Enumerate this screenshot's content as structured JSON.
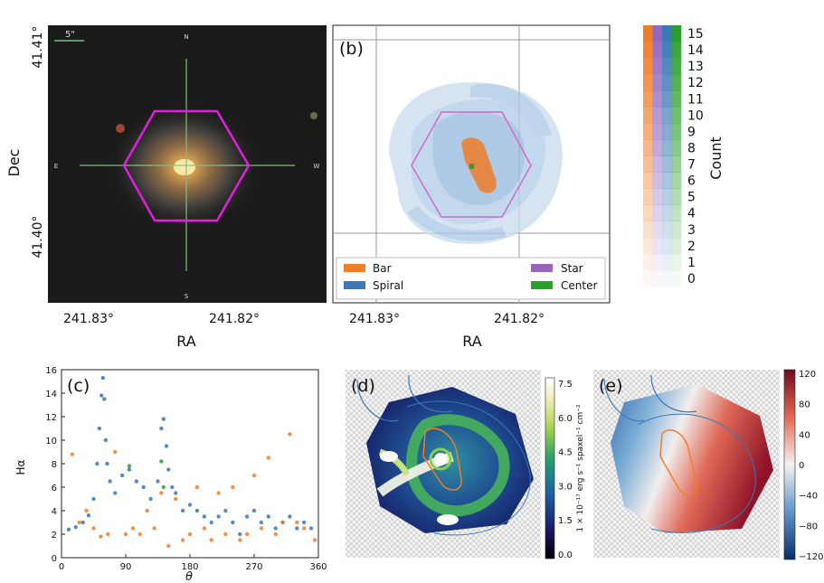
{
  "colors": {
    "bar": "#f07d28",
    "spiral": "#3b78b5",
    "star": "#9467bd",
    "center": "#2ca02c",
    "hex": "#e01fe0",
    "cross": "#7fbf7f"
  },
  "panel_a": {
    "ylabel": "Dec",
    "yticks": [
      "41.41°",
      "41.40°"
    ],
    "xticks": [
      "241.83°",
      "241.82°"
    ],
    "xlabel": "RA",
    "scale": "5\"",
    "compass": {
      "n": "N",
      "s": "S",
      "e": "E",
      "w": "W"
    }
  },
  "panel_b": {
    "letter": "(b)",
    "xticks": [
      "241.83°",
      "241.82°"
    ],
    "xlabel": "RA",
    "legend": [
      "Bar",
      "Spiral",
      "Star",
      "Center"
    ]
  },
  "colorbar_count": {
    "label": "Count",
    "ticks": [
      "15",
      "14",
      "13",
      "12",
      "11",
      "10",
      "9",
      "8",
      "7",
      "6",
      "5",
      "4",
      "3",
      "2",
      "1",
      "0"
    ]
  },
  "chart_data": {
    "type": "scatter",
    "letter": "(c)",
    "xlabel": "θ",
    "ylabel": "Hα",
    "xlim": [
      0,
      360
    ],
    "ylim": [
      0,
      16
    ],
    "xticks": [
      "0",
      "90",
      "180",
      "270",
      "360"
    ],
    "yticks": [
      "0",
      "2",
      "4",
      "6",
      "8",
      "10",
      "12",
      "14",
      "16"
    ],
    "series": [
      {
        "color_key": "spiral",
        "x": [
          10,
          20,
          30,
          38,
          45,
          50,
          53,
          56,
          58,
          60,
          62,
          64,
          68,
          75,
          85,
          95,
          105,
          115,
          125,
          135,
          140,
          143,
          147,
          150,
          155,
          160,
          170,
          180,
          190,
          200,
          210,
          220,
          230,
          240,
          250,
          260,
          270,
          280,
          290,
          300,
          310,
          320,
          330,
          340,
          350
        ],
        "y": [
          2.4,
          2.6,
          3.0,
          3.6,
          5.0,
          8.0,
          11.0,
          13.8,
          15.3,
          13.5,
          10.0,
          8.0,
          6.5,
          5.5,
          7.0,
          7.5,
          6.5,
          6.0,
          5.0,
          6.5,
          11.0,
          11.8,
          9.5,
          7.5,
          6.0,
          5.5,
          4.0,
          4.5,
          4.0,
          3.5,
          3.0,
          3.5,
          4.0,
          3.0,
          2.0,
          3.5,
          4.0,
          3.0,
          3.5,
          2.5,
          3.0,
          3.5,
          2.5,
          3.0,
          2.5
        ]
      },
      {
        "color_key": "bar",
        "x": [
          15,
          25,
          35,
          45,
          55,
          65,
          75,
          90,
          100,
          110,
          120,
          130,
          140,
          150,
          160,
          170,
          180,
          190,
          200,
          210,
          220,
          230,
          240,
          250,
          260,
          270,
          280,
          290,
          300,
          310,
          320,
          330,
          340,
          355
        ],
        "y": [
          8.8,
          3.0,
          4.0,
          2.5,
          1.8,
          2.0,
          9.0,
          2.0,
          2.5,
          2.0,
          4.0,
          2.5,
          5.5,
          1.0,
          5.0,
          1.5,
          2.0,
          6.0,
          2.5,
          1.5,
          5.5,
          2.0,
          6.0,
          1.5,
          2.0,
          7.0,
          2.5,
          8.5,
          2.0,
          3.0,
          10.5,
          3.0,
          2.5,
          1.5
        ]
      },
      {
        "color_key": "center",
        "x": [
          95,
          140,
          143
        ],
        "y": [
          7.8,
          8.2,
          6.0
        ]
      }
    ]
  },
  "panel_d": {
    "letter": "(d)",
    "cbar_label": "1 × 10⁻¹⁷ erg s⁻¹ spaxel⁻¹ cm⁻²",
    "cbar_ticks": [
      "7.5",
      "6.0",
      "4.5",
      "3.0",
      "1.5",
      "0.0"
    ]
  },
  "panel_e": {
    "letter": "(e)",
    "cbar_ticks": [
      "120",
      "80",
      "40",
      "0",
      "−40",
      "−80",
      "−120"
    ]
  }
}
